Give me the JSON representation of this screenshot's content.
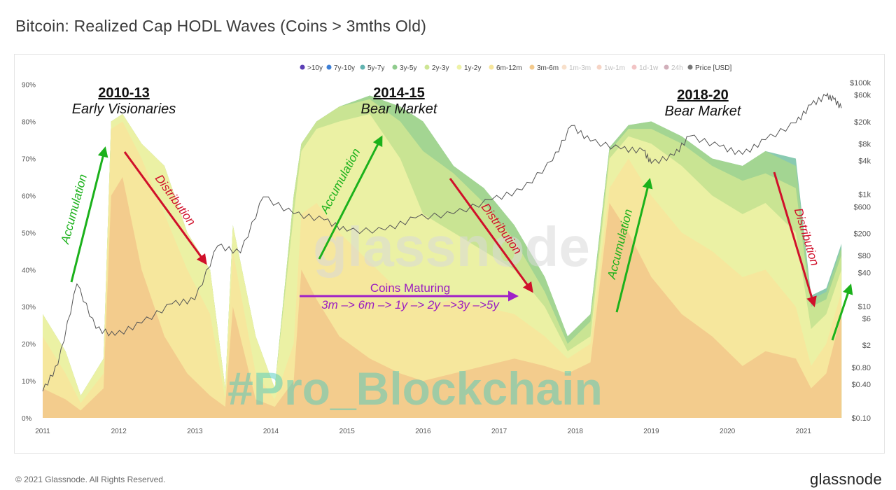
{
  "title": "Bitcoin: Realized Cap HODL Waves (Coins > 3mths Old)",
  "footer": {
    "copyright": "© 2021 Glassnode. All Rights Reserved.",
    "logo": "glassnode"
  },
  "watermarks": {
    "glassnode": "glassnode",
    "pro": "#Pro_Blockchain"
  },
  "chart_data": {
    "type": "area",
    "title": "Bitcoin: Realized Cap HODL Waves (Coins > 3mths Old)",
    "x_ticks": [
      "2011",
      "2012",
      "2013",
      "2014",
      "2015",
      "2016",
      "2017",
      "2018",
      "2019",
      "2020",
      "2021"
    ],
    "x_range": [
      2011.0,
      2021.6
    ],
    "y_left": {
      "ticks": [
        "0%",
        "10%",
        "20%",
        "30%",
        "40%",
        "50%",
        "60%",
        "70%",
        "80%",
        "90%"
      ],
      "range": [
        0,
        92
      ]
    },
    "y_right": {
      "ticks": [
        "$100k",
        "$60k",
        "$20k",
        "$8k",
        "$4k",
        "$1k",
        "$600",
        "$200",
        "$80",
        "$40",
        "$10",
        "$6",
        "$2",
        "$0.80",
        "$0.40",
        "$0.10"
      ],
      "values": [
        100000,
        60000,
        20000,
        8000,
        4000,
        1000,
        600,
        200,
        80,
        40,
        10,
        6,
        2,
        0.8,
        0.4,
        0.1
      ],
      "scale": "log"
    },
    "legend_position": "top-right",
    "legend": [
      {
        "label": ">10y",
        "color": "#5b3fb5",
        "faded": false
      },
      {
        "label": "7y-10y",
        "color": "#3d7fd6",
        "faded": false
      },
      {
        "label": "5y-7y",
        "color": "#62b3b0",
        "faded": false
      },
      {
        "label": "3y-5y",
        "color": "#8fcb8d",
        "faded": false
      },
      {
        "label": "2y-3y",
        "color": "#cde594",
        "faded": false
      },
      {
        "label": "1y-2y",
        "color": "#eef2a6",
        "faded": false
      },
      {
        "label": "6m-12m",
        "color": "#f7e69c",
        "faded": false
      },
      {
        "label": "3m-6m",
        "color": "#f3c98c",
        "faded": false
      },
      {
        "label": "1m-3m",
        "color": "#eba76a",
        "faded": true
      },
      {
        "label": "1w-1m",
        "color": "#e6845a",
        "faded": true
      },
      {
        "label": "1d-1w",
        "color": "#d9575a",
        "faded": true
      },
      {
        "label": "24h",
        "color": "#7a1b3a",
        "faded": true
      },
      {
        "label": "Price [USD]",
        "color": "#777777",
        "faded": false
      }
    ],
    "series": [
      {
        "name": "3m-6m",
        "color": "#f3c98c",
        "points": [
          [
            2011.0,
            8
          ],
          [
            2011.3,
            5
          ],
          [
            2011.5,
            2
          ],
          [
            2011.8,
            8
          ],
          [
            2011.9,
            60
          ],
          [
            2012.05,
            65
          ],
          [
            2012.3,
            40
          ],
          [
            2012.6,
            22
          ],
          [
            2012.9,
            12
          ],
          [
            2013.2,
            6
          ],
          [
            2013.4,
            3
          ],
          [
            2013.5,
            30
          ],
          [
            2013.8,
            5
          ],
          [
            2014.05,
            3
          ],
          [
            2014.3,
            10
          ],
          [
            2014.4,
            40
          ],
          [
            2014.6,
            32
          ],
          [
            2014.9,
            22
          ],
          [
            2015.3,
            16
          ],
          [
            2015.7,
            12
          ],
          [
            2016.0,
            10
          ],
          [
            2016.4,
            12
          ],
          [
            2016.8,
            14
          ],
          [
            2017.2,
            16
          ],
          [
            2017.6,
            14
          ],
          [
            2017.9,
            12
          ],
          [
            2018.2,
            15
          ],
          [
            2018.45,
            58
          ],
          [
            2018.7,
            50
          ],
          [
            2019.0,
            38
          ],
          [
            2019.4,
            28
          ],
          [
            2019.8,
            22
          ],
          [
            2020.2,
            14
          ],
          [
            2020.5,
            18
          ],
          [
            2020.9,
            16
          ],
          [
            2021.1,
            8
          ],
          [
            2021.3,
            12
          ],
          [
            2021.5,
            28
          ]
        ]
      },
      {
        "name": "6m-12m",
        "color": "#f7e69c",
        "points": [
          [
            2011.0,
            22
          ],
          [
            2011.3,
            12
          ],
          [
            2011.5,
            4
          ],
          [
            2011.8,
            12
          ],
          [
            2011.9,
            78
          ],
          [
            2012.05,
            80
          ],
          [
            2012.3,
            70
          ],
          [
            2012.6,
            55
          ],
          [
            2012.9,
            40
          ],
          [
            2013.2,
            28
          ],
          [
            2013.4,
            5
          ],
          [
            2013.5,
            45
          ],
          [
            2013.8,
            12
          ],
          [
            2014.05,
            5
          ],
          [
            2014.3,
            20
          ],
          [
            2014.4,
            55
          ],
          [
            2014.6,
            58
          ],
          [
            2014.9,
            50
          ],
          [
            2015.3,
            42
          ],
          [
            2015.7,
            34
          ],
          [
            2016.0,
            30
          ],
          [
            2016.4,
            32
          ],
          [
            2016.8,
            30
          ],
          [
            2017.2,
            28
          ],
          [
            2017.6,
            22
          ],
          [
            2017.9,
            16
          ],
          [
            2018.2,
            20
          ],
          [
            2018.45,
            62
          ],
          [
            2018.7,
            70
          ],
          [
            2019.0,
            60
          ],
          [
            2019.4,
            50
          ],
          [
            2019.8,
            45
          ],
          [
            2020.2,
            38
          ],
          [
            2020.5,
            40
          ],
          [
            2020.9,
            30
          ],
          [
            2021.1,
            14
          ],
          [
            2021.3,
            20
          ],
          [
            2021.5,
            34
          ]
        ]
      },
      {
        "name": "1y-2y",
        "color": "#eef2a6",
        "points": [
          [
            2011.0,
            28
          ],
          [
            2011.3,
            18
          ],
          [
            2011.5,
            6
          ],
          [
            2011.8,
            16
          ],
          [
            2011.9,
            80
          ],
          [
            2012.05,
            82
          ],
          [
            2012.3,
            74
          ],
          [
            2012.6,
            68
          ],
          [
            2012.9,
            50
          ],
          [
            2013.2,
            40
          ],
          [
            2013.4,
            8
          ],
          [
            2013.5,
            52
          ],
          [
            2013.8,
            22
          ],
          [
            2014.05,
            8
          ],
          [
            2014.3,
            55
          ],
          [
            2014.4,
            72
          ],
          [
            2014.6,
            78
          ],
          [
            2014.9,
            80
          ],
          [
            2015.3,
            82
          ],
          [
            2015.7,
            70
          ],
          [
            2016.0,
            55
          ],
          [
            2016.4,
            50
          ],
          [
            2016.8,
            45
          ],
          [
            2017.2,
            40
          ],
          [
            2017.6,
            30
          ],
          [
            2017.9,
            18
          ],
          [
            2018.2,
            22
          ],
          [
            2018.45,
            70
          ],
          [
            2018.7,
            76
          ],
          [
            2019.0,
            74
          ],
          [
            2019.4,
            68
          ],
          [
            2019.8,
            60
          ],
          [
            2020.2,
            55
          ],
          [
            2020.5,
            58
          ],
          [
            2020.9,
            50
          ],
          [
            2021.1,
            24
          ],
          [
            2021.3,
            28
          ],
          [
            2021.5,
            40
          ]
        ]
      },
      {
        "name": "2y-3y",
        "color": "#cde594",
        "points": [
          [
            2011.0,
            28
          ],
          [
            2011.3,
            18
          ],
          [
            2011.5,
            6
          ],
          [
            2011.8,
            16
          ],
          [
            2011.9,
            80
          ],
          [
            2012.05,
            82
          ],
          [
            2012.3,
            74
          ],
          [
            2012.6,
            68
          ],
          [
            2012.9,
            50
          ],
          [
            2013.2,
            40
          ],
          [
            2013.4,
            8
          ],
          [
            2013.5,
            52
          ],
          [
            2013.8,
            22
          ],
          [
            2014.05,
            8
          ],
          [
            2014.3,
            60
          ],
          [
            2014.4,
            74
          ],
          [
            2014.6,
            80
          ],
          [
            2014.9,
            84
          ],
          [
            2015.3,
            86
          ],
          [
            2015.7,
            80
          ],
          [
            2016.0,
            72
          ],
          [
            2016.4,
            66
          ],
          [
            2016.8,
            58
          ],
          [
            2017.2,
            48
          ],
          [
            2017.6,
            34
          ],
          [
            2017.9,
            20
          ],
          [
            2018.2,
            26
          ],
          [
            2018.45,
            72
          ],
          [
            2018.7,
            78
          ],
          [
            2019.0,
            78
          ],
          [
            2019.4,
            74
          ],
          [
            2019.8,
            68
          ],
          [
            2020.2,
            64
          ],
          [
            2020.5,
            66
          ],
          [
            2020.9,
            62
          ],
          [
            2021.1,
            30
          ],
          [
            2021.3,
            32
          ],
          [
            2021.5,
            44
          ]
        ]
      },
      {
        "name": "3y-5y",
        "color": "#a6d68f",
        "points": [
          [
            2011.0,
            28
          ],
          [
            2011.3,
            18
          ],
          [
            2011.5,
            6
          ],
          [
            2011.8,
            16
          ],
          [
            2011.9,
            80
          ],
          [
            2012.05,
            82
          ],
          [
            2012.3,
            74
          ],
          [
            2012.6,
            68
          ],
          [
            2012.9,
            50
          ],
          [
            2013.2,
            40
          ],
          [
            2013.4,
            8
          ],
          [
            2013.5,
            52
          ],
          [
            2013.8,
            22
          ],
          [
            2014.05,
            8
          ],
          [
            2014.3,
            60
          ],
          [
            2014.4,
            74
          ],
          [
            2014.6,
            80
          ],
          [
            2014.9,
            84
          ],
          [
            2015.3,
            87
          ],
          [
            2015.7,
            84
          ],
          [
            2016.0,
            80
          ],
          [
            2016.4,
            68
          ],
          [
            2016.8,
            62
          ],
          [
            2017.2,
            52
          ],
          [
            2017.6,
            38
          ],
          [
            2017.9,
            22
          ],
          [
            2018.2,
            28
          ],
          [
            2018.45,
            73
          ],
          [
            2018.7,
            79
          ],
          [
            2019.0,
            80
          ],
          [
            2019.4,
            76
          ],
          [
            2019.8,
            70
          ],
          [
            2020.2,
            68
          ],
          [
            2020.5,
            72
          ],
          [
            2020.9,
            68
          ],
          [
            2021.1,
            32
          ],
          [
            2021.3,
            34
          ],
          [
            2021.5,
            46
          ]
        ]
      },
      {
        "name": "5y-7y",
        "color": "#7cc4a8",
        "points": [
          [
            2011.0,
            28
          ],
          [
            2011.3,
            18
          ],
          [
            2011.5,
            6
          ],
          [
            2011.8,
            16
          ],
          [
            2011.9,
            80
          ],
          [
            2012.05,
            82
          ],
          [
            2012.3,
            74
          ],
          [
            2012.6,
            68
          ],
          [
            2012.9,
            50
          ],
          [
            2013.2,
            40
          ],
          [
            2013.4,
            8
          ],
          [
            2013.5,
            52
          ],
          [
            2013.8,
            22
          ],
          [
            2014.05,
            8
          ],
          [
            2014.3,
            60
          ],
          [
            2014.4,
            74
          ],
          [
            2014.6,
            80
          ],
          [
            2014.9,
            84
          ],
          [
            2015.3,
            87
          ],
          [
            2015.7,
            84
          ],
          [
            2016.0,
            80
          ],
          [
            2016.4,
            68
          ],
          [
            2016.8,
            62
          ],
          [
            2017.2,
            52
          ],
          [
            2017.6,
            38
          ],
          [
            2017.9,
            22
          ],
          [
            2018.2,
            28
          ],
          [
            2018.45,
            73
          ],
          [
            2018.7,
            79
          ],
          [
            2019.0,
            80
          ],
          [
            2019.4,
            76
          ],
          [
            2019.8,
            70
          ],
          [
            2020.2,
            68
          ],
          [
            2020.5,
            72
          ],
          [
            2020.9,
            70
          ],
          [
            2021.1,
            33
          ],
          [
            2021.3,
            35
          ],
          [
            2021.5,
            47
          ]
        ]
      }
    ],
    "price": [
      [
        2011.0,
        0.3
      ],
      [
        2011.2,
        0.9
      ],
      [
        2011.45,
        25
      ],
      [
        2011.7,
        4
      ],
      [
        2011.95,
        3
      ],
      [
        2012.3,
        5
      ],
      [
        2012.7,
        11
      ],
      [
        2013.0,
        13
      ],
      [
        2013.3,
        120
      ],
      [
        2013.6,
        90
      ],
      [
        2013.9,
        900
      ],
      [
        2014.3,
        450
      ],
      [
        2014.7,
        350
      ],
      [
        2015.0,
        220
      ],
      [
        2015.5,
        230
      ],
      [
        2015.9,
        380
      ],
      [
        2016.4,
        450
      ],
      [
        2016.9,
        800
      ],
      [
        2017.3,
        1200
      ],
      [
        2017.7,
        4000
      ],
      [
        2017.95,
        17000
      ],
      [
        2018.2,
        9000
      ],
      [
        2018.6,
        6500
      ],
      [
        2018.9,
        6000
      ],
      [
        2019.0,
        3600
      ],
      [
        2019.3,
        5000
      ],
      [
        2019.5,
        11000
      ],
      [
        2019.9,
        7200
      ],
      [
        2020.2,
        5200
      ],
      [
        2020.5,
        9500
      ],
      [
        2020.9,
        19000
      ],
      [
        2021.1,
        40000
      ],
      [
        2021.3,
        58000
      ],
      [
        2021.4,
        50000
      ],
      [
        2021.5,
        35000
      ]
    ],
    "annotations": {
      "periods": [
        {
          "year": "2010-13",
          "label": "Early Visionaries"
        },
        {
          "year": "2014-15",
          "label": "Bear Market"
        },
        {
          "year": "2018-20",
          "label": "Bear Market"
        }
      ],
      "arrows": {
        "accumulation": "Accumulation",
        "distribution": "Distribution"
      },
      "maturing_title": "Coins Maturing",
      "maturing_sequence": "3m –> 6m –> 1y –> 2y –>3y –>5y"
    }
  }
}
